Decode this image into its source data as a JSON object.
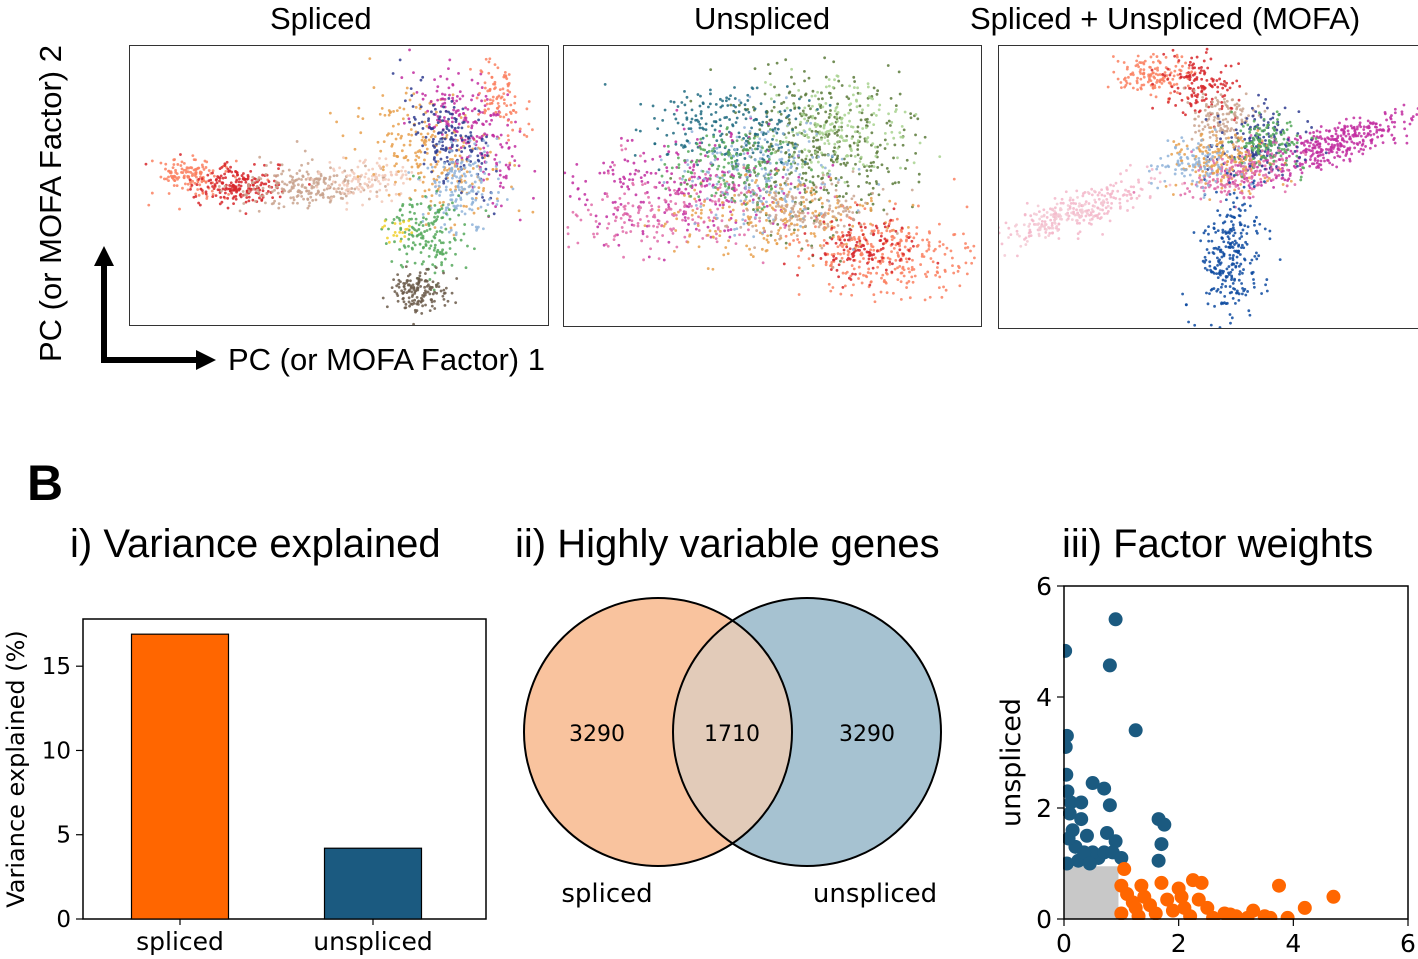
{
  "panel_a": {
    "titles": [
      "Spliced",
      "Unspliced",
      "Spliced + Unspliced (MOFA)"
    ],
    "x_axis_label": "PC (or MOFA Factor) 1",
    "y_axis_label": "PC (or MOFA Factor) 2"
  },
  "panel_b": {
    "label": "B",
    "titles": {
      "variance": "i) Variance explained",
      "hvg": "ii) Highly variable genes",
      "weights": "iii) Factor weights"
    }
  },
  "colors": {
    "spliced": "#ff6600",
    "unspliced": "#1b5a80",
    "venn_left": "#f9c39e",
    "venn_right": "#a6c2d1",
    "venn_overlap": "#e2cbb9",
    "weights_gray": "#c8c8c8"
  },
  "chart_data": [
    {
      "type": "bar",
      "title": "i) Variance explained",
      "categories": [
        "spliced",
        "unspliced"
      ],
      "values": [
        16.9,
        4.2
      ],
      "ylabel": "Variance explained (%)",
      "xlabel": "",
      "ylim": [
        0,
        17.8
      ],
      "yticks": [
        0,
        5,
        10,
        15
      ],
      "grid": false
    },
    {
      "type": "venn",
      "title": "ii) Highly variable genes",
      "sets": [
        "spliced",
        "unspliced"
      ],
      "regions": {
        "spliced_only": 3290,
        "both": 1710,
        "unspliced_only": 3290
      }
    },
    {
      "type": "scatter",
      "title": "iii) Factor weights",
      "ylabel": "unspliced",
      "xlim": [
        0,
        6
      ],
      "ylim": [
        0,
        6
      ],
      "xticks": [
        0,
        2,
        4,
        6
      ],
      "yticks": [
        0,
        2,
        4,
        6
      ],
      "series": [
        {
          "color": "#1b5a80",
          "points": [
            [
              0.02,
              4.83
            ],
            [
              0.9,
              5.4
            ],
            [
              0.8,
              4.57
            ],
            [
              1.25,
              3.4
            ],
            [
              0.05,
              3.3
            ],
            [
              0.03,
              3.1
            ],
            [
              0.04,
              2.6
            ],
            [
              0.06,
              2.3
            ],
            [
              0.5,
              2.45
            ],
            [
              0.7,
              2.35
            ],
            [
              0.8,
              2.05
            ],
            [
              0.3,
              1.8
            ],
            [
              0.4,
              1.5
            ],
            [
              0.75,
              1.55
            ],
            [
              0.9,
              1.4
            ],
            [
              0.6,
              1.1
            ],
            [
              0.5,
              1.2
            ],
            [
              0.2,
              1.3
            ],
            [
              0.15,
              1.6
            ],
            [
              0.1,
              1.9
            ],
            [
              0.12,
              2.1
            ],
            [
              0.25,
              1.05
            ],
            [
              0.35,
              1.2
            ],
            [
              0.45,
              1.0
            ],
            [
              0.7,
              1.2
            ],
            [
              0.85,
              1.2
            ],
            [
              1.0,
              1.1
            ],
            [
              1.65,
              1.8
            ],
            [
              1.75,
              1.7
            ],
            [
              1.7,
              1.35
            ],
            [
              1.65,
              1.05
            ],
            [
              0.05,
              1.0
            ],
            [
              0.08,
              1.45
            ],
            [
              0.3,
              2.1
            ]
          ]
        },
        {
          "color": "#ff6600",
          "points": [
            [
              1.05,
              0.9
            ],
            [
              1.35,
              0.6
            ],
            [
              1.7,
              0.65
            ],
            [
              2.0,
              0.55
            ],
            [
              2.25,
              0.7
            ],
            [
              2.4,
              0.65
            ],
            [
              1.2,
              0.3
            ],
            [
              1.5,
              0.25
            ],
            [
              1.8,
              0.35
            ],
            [
              2.1,
              0.2
            ],
            [
              2.5,
              0.2
            ],
            [
              2.8,
              0.1
            ],
            [
              3.0,
              0.05
            ],
            [
              3.3,
              0.15
            ],
            [
              3.5,
              0.05
            ],
            [
              3.75,
              0.6
            ],
            [
              3.6,
              0.02
            ],
            [
              3.9,
              0.02
            ],
            [
              4.2,
              0.2
            ],
            [
              4.7,
              0.4
            ],
            [
              1.0,
              0.1
            ],
            [
              1.3,
              0.05
            ],
            [
              1.6,
              0.1
            ],
            [
              2.2,
              0.05
            ],
            [
              2.6,
              0.02
            ],
            [
              1.1,
              0.45
            ],
            [
              1.4,
              0.4
            ],
            [
              1.9,
              0.15
            ],
            [
              2.35,
              0.35
            ],
            [
              2.9,
              0.08
            ],
            [
              3.2,
              0.02
            ],
            [
              1.0,
              0.6
            ],
            [
              1.25,
              0.2
            ],
            [
              2.05,
              0.4
            ]
          ]
        }
      ]
    }
  ]
}
